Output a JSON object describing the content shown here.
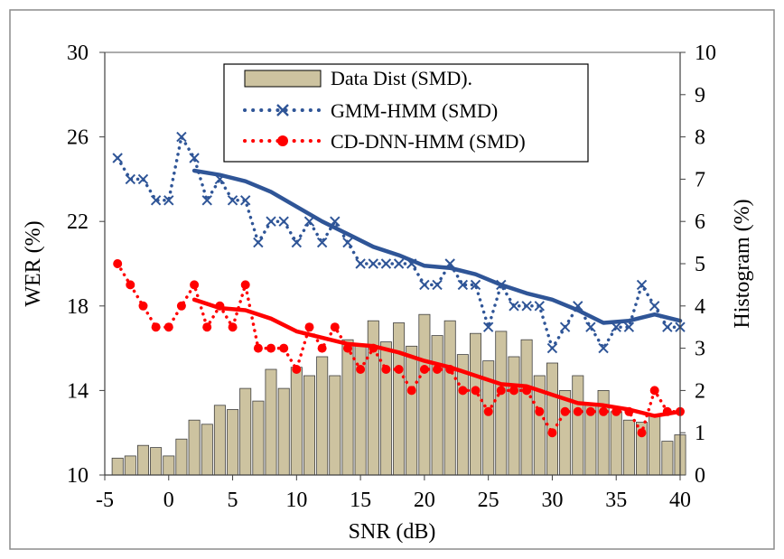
{
  "chart_data": {
    "type": "bar+line",
    "xlabel": "SNR (dB)",
    "ylabel_left": "WER (%)",
    "ylabel_right": "Histogram (%)",
    "xlim": [
      -5,
      40
    ],
    "ylim_left": [
      10,
      30
    ],
    "ylim_right": [
      0,
      10
    ],
    "x_ticks": [
      "-5",
      "0",
      "5",
      "10",
      "15",
      "20",
      "25",
      "30",
      "35",
      "40"
    ],
    "x_tick_values": [
      -5,
      0,
      5,
      10,
      15,
      20,
      25,
      30,
      35,
      40
    ],
    "y_ticks_left": [
      "10",
      "14",
      "18",
      "22",
      "26",
      "30"
    ],
    "y_tick_values_left": [
      10,
      14,
      18,
      22,
      26,
      30
    ],
    "y_ticks_right": [
      "0",
      "1",
      "2",
      "3",
      "4",
      "5",
      "6",
      "7",
      "8",
      "9",
      "10"
    ],
    "y_tick_values_right": [
      0,
      1,
      2,
      3,
      4,
      5,
      6,
      7,
      8,
      9,
      10
    ],
    "grid": false,
    "legend_position": "top-center",
    "legend": [
      {
        "label": "Data Dist (SMD).",
        "kind": "bar"
      },
      {
        "label": "GMM-HMM (SMD)",
        "kind": "x-marker"
      },
      {
        "label": "CD-DNN-HMM (SMD)",
        "kind": "dot-marker"
      }
    ],
    "histogram": {
      "name": "Data Dist (SMD).",
      "axis": "right",
      "color": "#cdc3a0",
      "x": [
        -4,
        -3,
        -2,
        -1,
        0,
        1,
        2,
        3,
        4,
        5,
        6,
        7,
        8,
        9,
        10,
        11,
        12,
        13,
        14,
        15,
        16,
        17,
        18,
        19,
        20,
        21,
        22,
        23,
        24,
        25,
        26,
        27,
        28,
        29,
        30,
        31,
        32,
        33,
        34,
        35,
        36,
        37,
        38,
        39,
        40
      ],
      "values": [
        0.4,
        0.45,
        0.7,
        0.65,
        0.45,
        0.85,
        1.3,
        1.2,
        1.65,
        1.55,
        2.05,
        1.75,
        2.5,
        2.05,
        2.55,
        2.35,
        2.8,
        2.35,
        3.2,
        3.1,
        3.65,
        3.15,
        3.6,
        3.05,
        3.8,
        3.3,
        3.65,
        2.85,
        3.35,
        2.7,
        3.4,
        2.8,
        3.2,
        2.35,
        2.65,
        2.0,
        2.35,
        1.65,
        2.0,
        1.5,
        1.3,
        1.25,
        1.4,
        0.8,
        0.95
      ]
    },
    "series": [
      {
        "name": "GMM-HMM (SMD)",
        "axis": "left",
        "color": "#2f5597",
        "marker": "x",
        "x": [
          -4,
          -3,
          -2,
          -1,
          0,
          1,
          2,
          3,
          4,
          5,
          6,
          7,
          8,
          9,
          10,
          11,
          12,
          13,
          14,
          15,
          16,
          17,
          18,
          19,
          20,
          21,
          22,
          23,
          24,
          25,
          26,
          27,
          28,
          29,
          30,
          31,
          32,
          33,
          34,
          35,
          36,
          37,
          38,
          39,
          40
        ],
        "values": [
          25,
          24,
          24,
          23,
          23,
          26,
          25,
          23,
          24,
          23,
          23,
          21,
          22,
          22,
          21,
          22,
          21,
          22,
          21,
          20,
          20,
          20,
          20,
          20,
          19,
          19,
          20,
          19,
          19,
          17,
          19,
          18,
          18,
          18,
          16,
          17,
          18,
          17,
          16,
          17,
          17,
          19,
          18,
          17,
          17
        ],
        "trend_x": [
          2,
          4,
          6,
          8,
          10,
          12,
          14,
          16,
          18,
          20,
          22,
          24,
          26,
          28,
          30,
          32,
          34,
          36,
          38,
          40
        ],
        "trend_values": [
          24.4,
          24.2,
          23.9,
          23.4,
          22.7,
          22.0,
          21.4,
          20.8,
          20.4,
          19.9,
          19.8,
          19.5,
          19.0,
          18.6,
          18.3,
          17.8,
          17.2,
          17.3,
          17.6,
          17.3
        ]
      },
      {
        "name": "CD-DNN-HMM (SMD)",
        "axis": "left",
        "color": "#ff0000",
        "marker": "circle",
        "x": [
          -4,
          -3,
          -2,
          -1,
          0,
          1,
          2,
          3,
          4,
          5,
          6,
          7,
          8,
          9,
          10,
          11,
          12,
          13,
          14,
          15,
          16,
          17,
          18,
          19,
          20,
          21,
          22,
          23,
          24,
          25,
          26,
          27,
          28,
          29,
          30,
          31,
          32,
          33,
          34,
          35,
          36,
          37,
          38,
          39,
          40
        ],
        "values": [
          20,
          19,
          18,
          17,
          17,
          18,
          19,
          17,
          18,
          17,
          19,
          16,
          16,
          16,
          15,
          17,
          16,
          17,
          16,
          15,
          16,
          15,
          15,
          14,
          15,
          15,
          15,
          14,
          14,
          13,
          14,
          14,
          14,
          13,
          12,
          13,
          13,
          13,
          13,
          13,
          13,
          12,
          14,
          13,
          13
        ],
        "trend_x": [
          2,
          4,
          6,
          8,
          10,
          12,
          14,
          16,
          18,
          20,
          22,
          24,
          26,
          28,
          30,
          32,
          34,
          36,
          38,
          40
        ],
        "trend_values": [
          18.3,
          17.9,
          17.8,
          17.4,
          16.8,
          16.5,
          16.2,
          16.1,
          15.8,
          15.4,
          15.1,
          14.7,
          14.3,
          14.2,
          13.8,
          13.4,
          13.3,
          13.1,
          12.8,
          13.0
        ]
      }
    ]
  }
}
